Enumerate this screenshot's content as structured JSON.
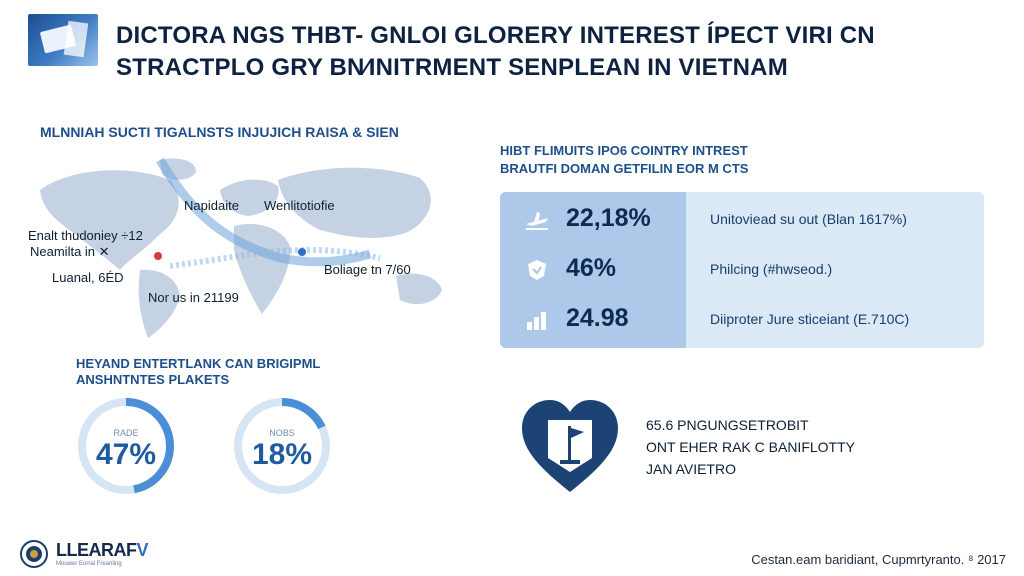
{
  "header": {
    "title_line1": "DICTORA NGS THBT- GNLOI GLORERY INTEREST ÍPECT VIRI CN",
    "title_line2": "STRACTPLO GRY BN⁄INITRMENT SENPLEAN IN VIETNAM"
  },
  "map": {
    "caption": "MLNNIAH SUCTI TIGALNSTS INJUJICH RAISA & SIEN",
    "labels": [
      {
        "text": "Napidaite"
      },
      {
        "text": "Wenlitotiofie"
      },
      {
        "text": "Enalt thudoniey ÷12"
      },
      {
        "text": "Neamilta in ✕"
      },
      {
        "text": "Luanal, 6ÉD"
      },
      {
        "text": "Boliage tn 7/60"
      },
      {
        "text": "Nor us in 21199"
      }
    ]
  },
  "stats": {
    "caption_line1": "HIBT FLIMUITS IPO6 COINTRY INTREST",
    "caption_line2": "BRAUTFI DOMAN GETFILIN EOR M CTS",
    "rows": [
      {
        "icon": "plane-icon",
        "value": "22,18%",
        "desc": "Unitoviead su out (Blan 1617%)"
      },
      {
        "icon": "shield-icon",
        "value": "46%",
        "desc": "Philcing (#hwseod.)"
      },
      {
        "icon": "chart-icon",
        "value": "24.98",
        "desc": "Diiproter Jure sticeiant (E.710C)"
      }
    ]
  },
  "rings": {
    "caption_line1": "HEYAND ENTERTLANK CAN BRIGIPML",
    "caption_line2": "ANSHNTNTES PLAKETS",
    "items": [
      {
        "small": "RADE",
        "pct": "47%",
        "fraction": 0.47
      },
      {
        "small": "NOBS",
        "pct": "18%",
        "fraction": 0.18
      }
    ]
  },
  "heart_panel": {
    "icon": "heart-flag-icon",
    "line1": "65.6 PNGUNGSETROBIT",
    "line2": "ONT EHER RAK C BANIFLOTTY",
    "line3": "JAN AVIETRO"
  },
  "brand": {
    "name_main": "LLEARAF",
    "name_accent": "V",
    "tagline": "Mouwer Eorral Freanling"
  },
  "footer": {
    "credit": "Cestan.eam baridiant, Cupmrtyranto. ⁸ 2017"
  },
  "colors": {
    "navy": "#0d2a52",
    "accent_blue": "#2e6fc0",
    "panel_light": "#dbe8f6",
    "panel_mid": "#adc8e8",
    "heart_navy": "#1c4373"
  }
}
